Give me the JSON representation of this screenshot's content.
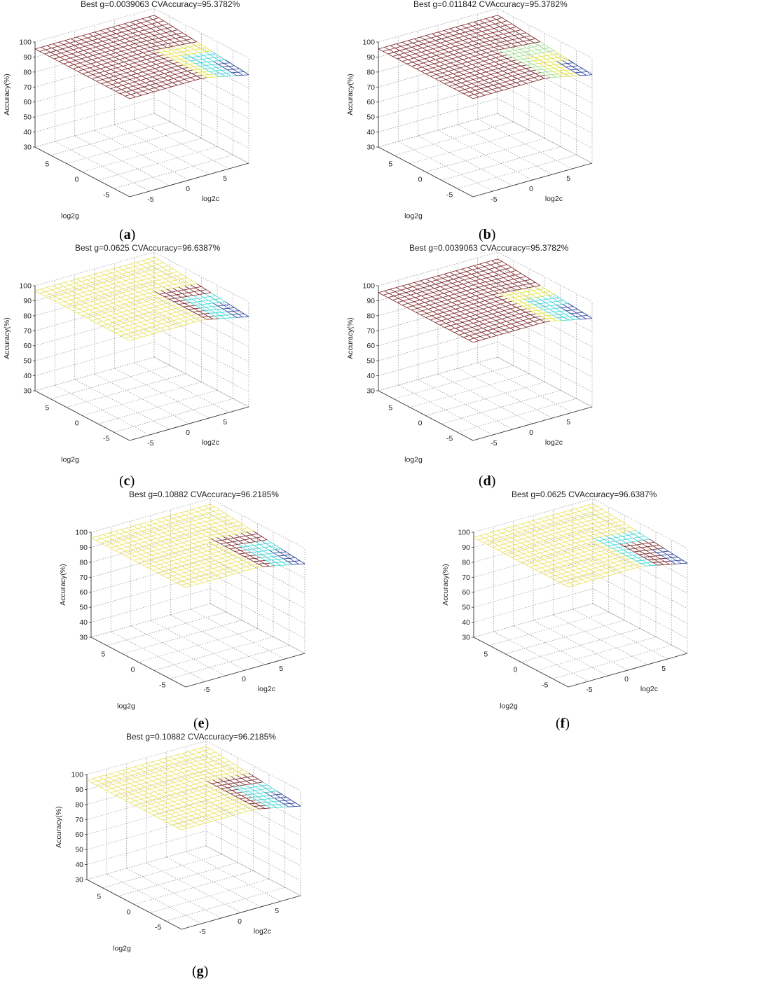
{
  "figure": {
    "panels": [
      {
        "letter": "a",
        "title": "Best g=0.0039063 CVAccuracy=95.3782%"
      },
      {
        "letter": "b",
        "title": "Best g=0.011842 CVAccuracy=95.3782%"
      },
      {
        "letter": "c",
        "title": "Best g=0.0625 CVAccuracy=96.6387%"
      },
      {
        "letter": "d",
        "title": "Best g=0.0039063 CVAccuracy=95.3782%"
      },
      {
        "letter": "e",
        "title": "Best g=0.10882 CVAccuracy=96.2185%"
      },
      {
        "letter": "f",
        "title": "Best g=0.0625 CVAccuracy=96.6387%"
      },
      {
        "letter": "g",
        "title": "Best g=0.10882 CVAccuracy=96.2185%"
      }
    ]
  },
  "chart_data": [
    {
      "type": "surface",
      "title": "Best g=0.0039063 CVAccuracy=95.3782%",
      "xlabel": "log2c",
      "ylabel": "log2g",
      "zlabel": "Accuracy(%)",
      "x_ticks": [
        "-5",
        "0",
        "5"
      ],
      "y_ticks": [
        "5",
        "0",
        "-5"
      ],
      "z_ticks": [
        "30",
        "40",
        "50",
        "60",
        "70",
        "80",
        "90",
        "100"
      ],
      "xlim": [
        -8,
        8
      ],
      "ylim": [
        -8,
        8
      ],
      "zlim": [
        30,
        100
      ],
      "plateau_accuracy": 95.4,
      "best_g": 0.0039063,
      "cv_accuracy": 95.3782,
      "colors": {
        "main": "#7a1f22",
        "edge1": "#e3e33a",
        "edge2": "#3ad8d8",
        "edge3": "#1e3a9a"
      }
    },
    {
      "type": "surface",
      "title": "Best g=0.011842 CVAccuracy=95.3782%",
      "xlabel": "log2c",
      "ylabel": "log2g",
      "zlabel": "Accuracy(%)",
      "x_ticks": [
        "-5",
        "0",
        "5"
      ],
      "y_ticks": [
        "5",
        "0",
        "-5"
      ],
      "z_ticks": [
        "30",
        "40",
        "50",
        "60",
        "70",
        "80",
        "90",
        "100"
      ],
      "xlim": [
        -8,
        8
      ],
      "ylim": [
        -8,
        8
      ],
      "zlim": [
        30,
        100
      ],
      "plateau_accuracy": 95.4,
      "best_g": 0.011842,
      "cv_accuracy": 95.3782,
      "colors": {
        "main": "#7a1f22",
        "edge1": "#9be08a",
        "edge2": "#e3e33a",
        "edge3": "#1e3a9a"
      }
    },
    {
      "type": "surface",
      "title": "Best g=0.0625 CVAccuracy=96.6387%",
      "xlabel": "log2c",
      "ylabel": "log2g",
      "zlabel": "Accuracy(%)",
      "x_ticks": [
        "-5",
        "0",
        "5"
      ],
      "y_ticks": [
        "5",
        "0",
        "-5"
      ],
      "z_ticks": [
        "30",
        "40",
        "50",
        "60",
        "70",
        "80",
        "90",
        "100"
      ],
      "xlim": [
        -8,
        8
      ],
      "ylim": [
        -8,
        8
      ],
      "zlim": [
        30,
        100
      ],
      "plateau_accuracy": 96.6,
      "best_g": 0.0625,
      "cv_accuracy": 96.6387,
      "colors": {
        "main": "#e8e05a",
        "edge1": "#7a1f22",
        "edge2": "#3ad8d8",
        "edge3": "#1e3a9a"
      }
    },
    {
      "type": "surface",
      "title": "Best g=0.0039063 CVAccuracy=95.3782%",
      "xlabel": "log2c",
      "ylabel": "log2g",
      "zlabel": "Accuracy(%)",
      "x_ticks": [
        "-5",
        "0",
        "5"
      ],
      "y_ticks": [
        "5",
        "0",
        "-5"
      ],
      "z_ticks": [
        "30",
        "40",
        "50",
        "60",
        "70",
        "80",
        "90",
        "100"
      ],
      "xlim": [
        -8,
        8
      ],
      "ylim": [
        -8,
        8
      ],
      "zlim": [
        30,
        100
      ],
      "plateau_accuracy": 95.4,
      "best_g": 0.0039063,
      "cv_accuracy": 95.3782,
      "colors": {
        "main": "#7a1f22",
        "edge1": "#e3e33a",
        "edge2": "#3ad8d8",
        "edge3": "#1e3a9a"
      }
    },
    {
      "type": "surface",
      "title": "Best g=0.10882 CVAccuracy=96.2185%",
      "xlabel": "log2c",
      "ylabel": "log2g",
      "zlabel": "Accuracy(%)",
      "x_ticks": [
        "-5",
        "0",
        "5"
      ],
      "y_ticks": [
        "5",
        "0",
        "-5"
      ],
      "z_ticks": [
        "30",
        "40",
        "50",
        "60",
        "70",
        "80",
        "90",
        "100"
      ],
      "xlim": [
        -8,
        8
      ],
      "ylim": [
        -8,
        8
      ],
      "zlim": [
        30,
        100
      ],
      "plateau_accuracy": 96.2,
      "best_g": 0.10882,
      "cv_accuracy": 96.2185,
      "colors": {
        "main": "#e8e05a",
        "edge1": "#7a1f22",
        "edge2": "#3ad8d8",
        "edge3": "#1e3a9a"
      }
    },
    {
      "type": "surface",
      "title": "Best g=0.0625 CVAccuracy=96.6387%",
      "xlabel": "log2c",
      "ylabel": "log2g",
      "zlabel": "Accuracy(%)",
      "x_ticks": [
        "-5",
        "0",
        "5"
      ],
      "y_ticks": [
        "5",
        "0",
        "-5"
      ],
      "z_ticks": [
        "30",
        "40",
        "50",
        "60",
        "70",
        "80",
        "90",
        "100"
      ],
      "xlim": [
        -8,
        8
      ],
      "ylim": [
        -8,
        8
      ],
      "zlim": [
        30,
        100
      ],
      "plateau_accuracy": 96.6,
      "best_g": 0.0625,
      "cv_accuracy": 96.6387,
      "colors": {
        "main": "#e8e05a",
        "edge1": "#3ad8d8",
        "edge2": "#7a1f22",
        "edge3": "#1e3a9a"
      }
    },
    {
      "type": "surface",
      "title": "Best g=0.10882 CVAccuracy=96.2185%",
      "xlabel": "log2c",
      "ylabel": "log2g",
      "zlabel": "Accuracy(%)",
      "x_ticks": [
        "-5",
        "0",
        "5"
      ],
      "y_ticks": [
        "5",
        "0",
        "-5"
      ],
      "z_ticks": [
        "30",
        "40",
        "50",
        "60",
        "70",
        "80",
        "90",
        "100"
      ],
      "xlim": [
        -8,
        8
      ],
      "ylim": [
        -8,
        8
      ],
      "zlim": [
        30,
        100
      ],
      "plateau_accuracy": 96.2,
      "best_g": 0.10882,
      "cv_accuracy": 96.2185,
      "colors": {
        "main": "#e8e05a",
        "edge1": "#7a1f22",
        "edge2": "#3ad8d8",
        "edge3": "#1e3a9a"
      }
    }
  ]
}
